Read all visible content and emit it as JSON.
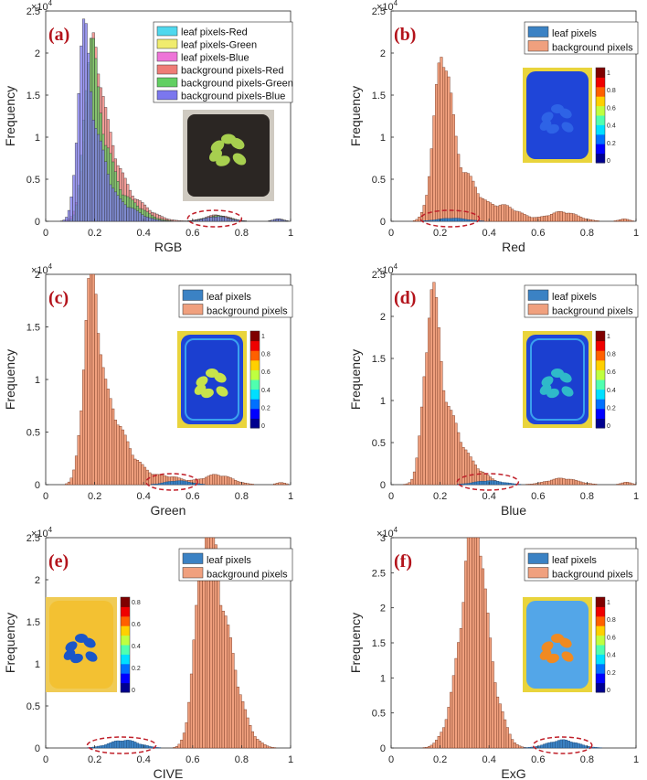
{
  "colors": {
    "leaf": "#3b82c4",
    "background": "#f0a07e",
    "bg_stroke": "#6b2d18",
    "annotation": "#c0202a",
    "rgb_series": [
      "#4fd8ee",
      "#f0ec6e",
      "#ee74d8",
      "#ef7c76",
      "#62cf62",
      "#7b77ee"
    ]
  },
  "chart_data": [
    {
      "type": "bar",
      "panel": "(a)",
      "title": "",
      "xlabel": "RGB",
      "ylabel": "Frequency",
      "y_multiplier": "×10^4",
      "xlim": [
        0,
        1
      ],
      "ylim": [
        0,
        2.5
      ],
      "xticks": [
        "0",
        "0.2",
        "0.4",
        "0.6",
        "0.8",
        "1"
      ],
      "yticks": [
        "0",
        "0.5",
        "1",
        "1.5",
        "2",
        "2.5"
      ],
      "legend": [
        "leaf pixels-Red",
        "leaf pixels-Green",
        "leaf pixels-Blue",
        "background pixels-Red",
        "background pixels-Green",
        "background pixels-Blue"
      ],
      "inset": "photo",
      "highlight": [
        0.58,
        0.8
      ],
      "series": [
        {
          "name": "background pixels-Red",
          "peaks": [
            [
              0.19,
              1.65,
              0.03
            ],
            [
              0.24,
              0.9,
              0.05
            ],
            [
              0.33,
              0.3,
              0.08
            ],
            [
              0.7,
              0.08,
              0.05
            ],
            [
              0.95,
              0.03,
              0.02
            ]
          ]
        },
        {
          "name": "background pixels-Green",
          "peaks": [
            [
              0.18,
              1.85,
              0.025
            ],
            [
              0.23,
              0.9,
              0.04
            ],
            [
              0.32,
              0.28,
              0.07
            ],
            [
              0.7,
              0.07,
              0.05
            ],
            [
              0.95,
              0.03,
              0.02
            ]
          ]
        },
        {
          "name": "background pixels-Blue",
          "peaks": [
            [
              0.155,
              2.05,
              0.025
            ],
            [
              0.21,
              0.85,
              0.04
            ],
            [
              0.3,
              0.22,
              0.07
            ],
            [
              0.7,
              0.06,
              0.05
            ],
            [
              0.95,
              0.03,
              0.02
            ]
          ]
        }
      ]
    },
    {
      "type": "bar",
      "panel": "(b)",
      "xlabel": "Red",
      "ylabel": "Frequency",
      "y_multiplier": "×10^4",
      "xlim": [
        0,
        1
      ],
      "ylim": [
        0,
        2.5
      ],
      "xticks": [
        "0",
        "0.2",
        "0.4",
        "0.6",
        "0.8",
        "1"
      ],
      "yticks": [
        "0",
        "0.5",
        "1",
        "1.5",
        "2",
        "2.5"
      ],
      "legend": [
        "leaf pixels",
        "background pixels"
      ],
      "colorbar_ticks": [
        "1",
        "0.8",
        "0.6",
        "0.4",
        "0.2",
        "0"
      ],
      "highlight": [
        0.12,
        0.36
      ],
      "series": [
        {
          "name": "background pixels",
          "peaks": [
            [
              0.21,
              2.05,
              0.035
            ],
            [
              0.3,
              0.55,
              0.05
            ],
            [
              0.45,
              0.2,
              0.07
            ],
            [
              0.7,
              0.12,
              0.06
            ],
            [
              0.95,
              0.03,
              0.02
            ]
          ]
        },
        {
          "name": "leaf pixels",
          "peaks": [
            [
              0.25,
              0.04,
              0.06
            ]
          ]
        }
      ]
    },
    {
      "type": "bar",
      "panel": "(c)",
      "xlabel": "Green",
      "ylabel": "Frequency",
      "y_multiplier": "×10^4",
      "xlim": [
        0,
        1
      ],
      "ylim": [
        0,
        2
      ],
      "xticks": [
        "0",
        "0.2",
        "0.4",
        "0.6",
        "0.8",
        "1"
      ],
      "yticks": [
        "0",
        "0.5",
        "1",
        "1.5",
        "2"
      ],
      "legend": [
        "leaf pixels",
        "background pixels"
      ],
      "colorbar_ticks": [
        "1",
        "0.8",
        "0.6",
        "0.4",
        "0.2",
        "0"
      ],
      "highlight": [
        0.41,
        0.62
      ],
      "series": [
        {
          "name": "background pixels",
          "peaks": [
            [
              0.185,
              1.85,
              0.03
            ],
            [
              0.25,
              0.7,
              0.05
            ],
            [
              0.34,
              0.25,
              0.06
            ],
            [
              0.5,
              0.08,
              0.06
            ],
            [
              0.7,
              0.1,
              0.06
            ],
            [
              0.96,
              0.02,
              0.02
            ]
          ]
        },
        {
          "name": "leaf pixels",
          "peaks": [
            [
              0.54,
              0.04,
              0.05
            ]
          ]
        }
      ]
    },
    {
      "type": "bar",
      "panel": "(d)",
      "xlabel": "Blue",
      "ylabel": "Frequency",
      "y_multiplier": "×10^4",
      "xlim": [
        0,
        1
      ],
      "ylim": [
        0,
        2.5
      ],
      "xticks": [
        "0",
        "0.2",
        "0.4",
        "0.6",
        "0.8",
        "1"
      ],
      "yticks": [
        "0",
        "0.5",
        "1",
        "1.5",
        "2",
        "2.5"
      ],
      "legend": [
        "leaf pixels",
        "background pixels"
      ],
      "colorbar_ticks": [
        "1",
        "0.8",
        "0.6",
        "0.4",
        "0.2",
        "0"
      ],
      "highlight": [
        0.27,
        0.52
      ],
      "series": [
        {
          "name": "background pixels",
          "peaks": [
            [
              0.165,
              2.1,
              0.03
            ],
            [
              0.23,
              0.8,
              0.05
            ],
            [
              0.33,
              0.2,
              0.06
            ],
            [
              0.7,
              0.08,
              0.06
            ],
            [
              0.96,
              0.03,
              0.02
            ]
          ]
        },
        {
          "name": "leaf pixels",
          "peaks": [
            [
              0.4,
              0.05,
              0.06
            ]
          ]
        }
      ]
    },
    {
      "type": "bar",
      "panel": "(e)",
      "xlabel": "CIVE",
      "ylabel": "Frequency",
      "y_multiplier": "×10^4",
      "xlim": [
        0,
        1
      ],
      "ylim": [
        0,
        2.5
      ],
      "xticks": [
        "0",
        "0.2",
        "0.4",
        "0.6",
        "0.8",
        "1"
      ],
      "yticks": [
        "0",
        "0.5",
        "1",
        "1.5",
        "2",
        "2.5"
      ],
      "legend": [
        "leaf pixels",
        "background pixels"
      ],
      "colorbar_ticks": [
        "0.8",
        "0.6",
        "0.4",
        "0.2",
        "0"
      ],
      "highlight": [
        0.17,
        0.45
      ],
      "series": [
        {
          "name": "background pixels",
          "peaks": [
            [
              0.66,
              2.1,
              0.03
            ],
            [
              0.71,
              1.45,
              0.035
            ],
            [
              0.62,
              1.0,
              0.03
            ],
            [
              0.77,
              0.7,
              0.035
            ],
            [
              0.83,
              0.15,
              0.04
            ]
          ]
        },
        {
          "name": "leaf pixels",
          "peaks": [
            [
              0.32,
              0.1,
              0.06
            ]
          ]
        }
      ]
    },
    {
      "type": "bar",
      "panel": "(f)",
      "xlabel": "ExG",
      "ylabel": "Frequency",
      "y_multiplier": "×10^4",
      "xlim": [
        0,
        1
      ],
      "ylim": [
        0,
        3
      ],
      "xticks": [
        "0",
        "0.2",
        "0.4",
        "0.6",
        "0.8",
        "1"
      ],
      "yticks": [
        "0",
        "0.5",
        "1",
        "1.5",
        "2",
        "2.5",
        "3"
      ],
      "legend": [
        "leaf pixels",
        "background pixels"
      ],
      "colorbar_ticks": [
        "1",
        "0.8",
        "0.6",
        "0.4",
        "0.2",
        "0"
      ],
      "highlight": [
        0.58,
        0.82
      ],
      "series": [
        {
          "name": "background pixels",
          "peaks": [
            [
              0.34,
              2.45,
              0.03
            ],
            [
              0.3,
              1.35,
              0.035
            ],
            [
              0.38,
              1.2,
              0.035
            ],
            [
              0.43,
              0.5,
              0.04
            ],
            [
              0.25,
              0.4,
              0.04
            ]
          ]
        },
        {
          "name": "leaf pixels",
          "peaks": [
            [
              0.7,
              0.12,
              0.06
            ]
          ]
        }
      ]
    }
  ]
}
